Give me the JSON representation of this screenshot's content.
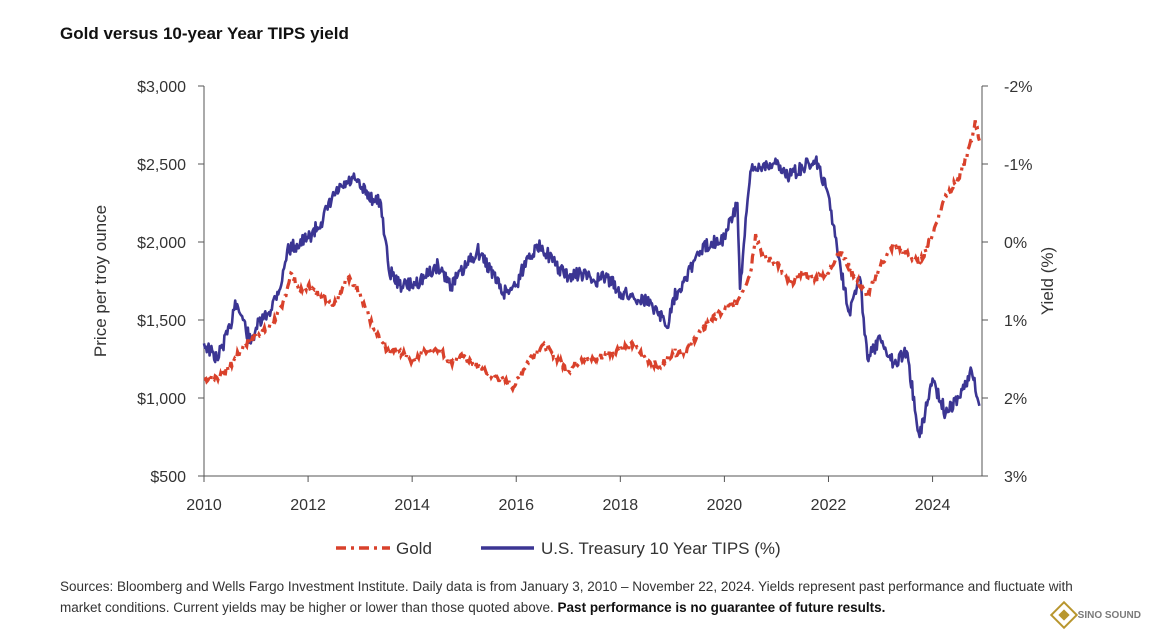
{
  "title": "Gold versus 10-year Year TIPS yield",
  "footnote": {
    "text": "Sources: Bloomberg and Wells Fargo Investment Institute. Daily data is from January 3, 2010 – November 22, 2024. Yields represent past performance and fluctuate with market conditions. Current yields may be higher or lower than those quoted above.",
    "bold": "Past performance is no guarantee of future results."
  },
  "logo": {
    "text": "SINO SOUND",
    "icon": "diamond-logo-icon"
  },
  "chart_data": {
    "type": "line",
    "xlabel": "",
    "ylabel": "Price per troy ounce",
    "y2label": "Yield (%)",
    "xlim": [
      2010,
      2024.95
    ],
    "ylim": [
      500,
      3000
    ],
    "y2lim": [
      3,
      -2
    ],
    "y2_inverted": true,
    "grid": false,
    "legend_position": "bottom-center",
    "x_ticks": [
      "2010",
      "2012",
      "2014",
      "2016",
      "2018",
      "2020",
      "2022",
      "2024"
    ],
    "y_ticks": [
      "$500",
      "$1,000",
      "$1,500",
      "$2,000",
      "$2,500",
      "$3,000"
    ],
    "y2_ticks": [
      "3%",
      "2%",
      "1%",
      "0%",
      "-1%",
      "-2%"
    ],
    "colors": {
      "gold": "#d9412b",
      "tips": "#3b3593"
    },
    "series": [
      {
        "name": "Gold",
        "axis": "left",
        "style": "dash-dot",
        "x": [
          2010.0,
          2010.25,
          2010.5,
          2010.75,
          2011.0,
          2011.25,
          2011.5,
          2011.67,
          2011.85,
          2012.0,
          2012.25,
          2012.5,
          2012.75,
          2012.9,
          2013.0,
          2013.25,
          2013.5,
          2013.75,
          2014.0,
          2014.25,
          2014.5,
          2014.75,
          2015.0,
          2015.25,
          2015.5,
          2015.75,
          2015.95,
          2016.25,
          2016.5,
          2016.75,
          2017.0,
          2017.25,
          2017.5,
          2017.75,
          2018.0,
          2018.25,
          2018.5,
          2018.75,
          2019.0,
          2019.25,
          2019.5,
          2019.75,
          2020.0,
          2020.25,
          2020.5,
          2020.6,
          2020.75,
          2021.0,
          2021.25,
          2021.5,
          2021.75,
          2022.0,
          2022.2,
          2022.5,
          2022.75,
          2023.0,
          2023.25,
          2023.5,
          2023.75,
          2024.0,
          2024.25,
          2024.5,
          2024.75,
          2024.82,
          2024.9
        ],
        "values": [
          1120,
          1130,
          1200,
          1330,
          1400,
          1450,
          1580,
          1800,
          1680,
          1720,
          1650,
          1600,
          1770,
          1720,
          1670,
          1450,
          1300,
          1300,
          1240,
          1300,
          1320,
          1230,
          1270,
          1200,
          1150,
          1120,
          1070,
          1250,
          1340,
          1270,
          1170,
          1250,
          1250,
          1280,
          1320,
          1340,
          1250,
          1200,
          1290,
          1300,
          1410,
          1500,
          1560,
          1620,
          1800,
          2050,
          1900,
          1870,
          1730,
          1800,
          1770,
          1800,
          1950,
          1780,
          1650,
          1850,
          1980,
          1930,
          1860,
          2050,
          2300,
          2400,
          2650,
          2780,
          2650
        ]
      },
      {
        "name": "U.S. Treasury 10 Year TIPS (%)",
        "axis": "right",
        "style": "solid",
        "x": [
          2010.0,
          2010.25,
          2010.5,
          2010.6,
          2010.75,
          2010.9,
          2011.0,
          2011.25,
          2011.5,
          2011.6,
          2011.75,
          2012.0,
          2012.25,
          2012.5,
          2012.75,
          2012.9,
          2013.0,
          2013.25,
          2013.4,
          2013.55,
          2013.75,
          2014.0,
          2014.25,
          2014.5,
          2014.75,
          2015.0,
          2015.25,
          2015.5,
          2015.75,
          2016.0,
          2016.25,
          2016.5,
          2016.75,
          2017.0,
          2017.25,
          2017.5,
          2017.75,
          2018.0,
          2018.25,
          2018.5,
          2018.75,
          2018.9,
          2019.0,
          2019.25,
          2019.5,
          2019.75,
          2020.0,
          2020.25,
          2020.3,
          2020.5,
          2020.75,
          2021.0,
          2021.25,
          2021.5,
          2021.75,
          2022.0,
          2022.2,
          2022.4,
          2022.6,
          2022.75,
          2023.0,
          2023.25,
          2023.5,
          2023.75,
          2024.0,
          2024.25,
          2024.5,
          2024.75,
          2024.9
        ],
        "values": [
          1.3,
          1.5,
          1.1,
          0.75,
          1.0,
          1.3,
          1.1,
          0.9,
          0.5,
          0.1,
          0.05,
          -0.05,
          -0.25,
          -0.6,
          -0.75,
          -0.8,
          -0.7,
          -0.55,
          -0.5,
          0.35,
          0.55,
          0.55,
          0.45,
          0.3,
          0.55,
          0.35,
          0.1,
          0.35,
          0.65,
          0.55,
          0.15,
          0.05,
          0.3,
          0.45,
          0.4,
          0.5,
          0.45,
          0.65,
          0.7,
          0.75,
          0.9,
          1.1,
          0.75,
          0.45,
          0.15,
          0.0,
          -0.05,
          -0.5,
          0.6,
          -0.9,
          -1.0,
          -1.0,
          -0.85,
          -0.95,
          -1.05,
          -0.6,
          0.2,
          0.9,
          0.45,
          1.5,
          1.25,
          1.55,
          1.4,
          2.5,
          1.75,
          2.2,
          2.0,
          1.65,
          2.1
        ]
      }
    ]
  }
}
